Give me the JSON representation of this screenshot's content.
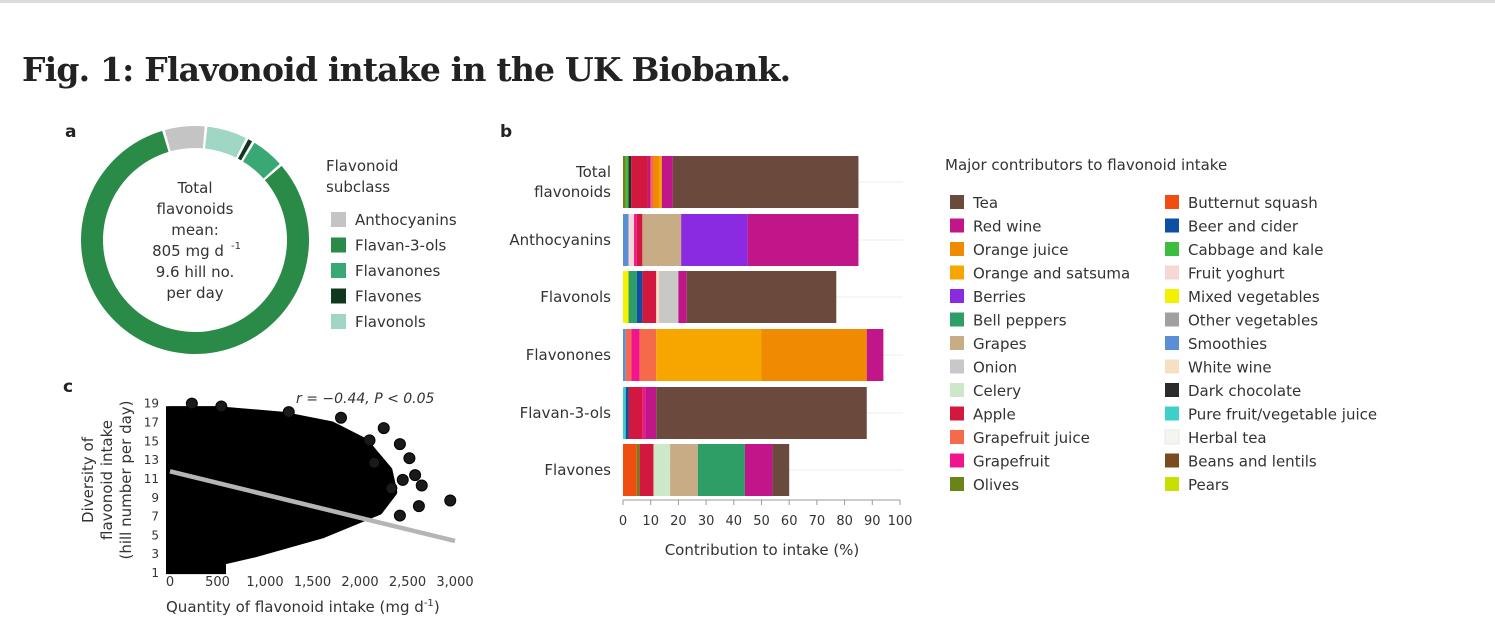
{
  "figure": {
    "title": "Fig. 1: Flavonoid intake in the UK Biobank."
  },
  "chart_data": [
    {
      "panel": "a",
      "type": "pie",
      "style": "donut",
      "center_text": [
        "Total",
        "flavonoids",
        "mean:",
        "805 mg d",
        "9.6 hill no.",
        "per day"
      ],
      "center_unit_superscript": "-1",
      "legend_title": [
        "Flavonoid",
        "subclass"
      ],
      "legend": [
        {
          "label": "Anthocyanins",
          "color": "#c4c4c4"
        },
        {
          "label": "Flavan-3-ols",
          "color": "#2a8a47"
        },
        {
          "label": "Flavanones",
          "color": "#3aa874"
        },
        {
          "label": "Flavones",
          "color": "#10381f"
        },
        {
          "label": "Flavonols",
          "color": "#9fd6c4"
        }
      ],
      "slices": [
        {
          "label": "Anthocyanins",
          "value": 6,
          "color": "#c4c4c4"
        },
        {
          "label": "Flavonols",
          "value": 6,
          "color": "#9fd6c4"
        },
        {
          "label": "Flavones",
          "value": 1,
          "color": "#10381f"
        },
        {
          "label": "Flavanones",
          "value": 5,
          "color": "#3aa874"
        },
        {
          "label": "Flavan-3-ols",
          "value": 82,
          "color": "#2a8a47"
        }
      ]
    },
    {
      "panel": "b",
      "type": "bar",
      "orientation": "horizontal",
      "stacked": true,
      "xlabel": "Contribution to intake (%)",
      "xlim": [
        0,
        100
      ],
      "xticks": [
        0,
        10,
        20,
        30,
        40,
        50,
        60,
        70,
        80,
        90,
        100
      ],
      "categories": [
        [
          "Total",
          "flavonoids"
        ],
        [
          "Anthocyanins"
        ],
        [
          "Flavonols"
        ],
        [
          "Flavonones"
        ],
        [
          "Flavan-3-ols"
        ],
        [
          "Flavones"
        ]
      ],
      "legend_title": "Major contributors to flavonoid intake",
      "legend": [
        {
          "label": "Tea",
          "color": "#6b4a3d"
        },
        {
          "label": "Red wine",
          "color": "#c0168a"
        },
        {
          "label": "Orange juice",
          "color": "#f08a00"
        },
        {
          "label": "Orange and satsuma",
          "color": "#f7a600"
        },
        {
          "label": "Berries",
          "color": "#8a2be2"
        },
        {
          "label": "Bell peppers",
          "color": "#2e9e66"
        },
        {
          "label": "Grapes",
          "color": "#c8ac86"
        },
        {
          "label": "Onion",
          "color": "#c8c8c8"
        },
        {
          "label": "Celery",
          "color": "#cde8c9"
        },
        {
          "label": "Apple",
          "color": "#d2183e"
        },
        {
          "label": "Grapefruit juice",
          "color": "#f56a4a"
        },
        {
          "label": "Grapefruit",
          "color": "#f0158c"
        },
        {
          "label": "Olives",
          "color": "#6b8418"
        },
        {
          "label": "Butternut squash",
          "color": "#f04e10"
        },
        {
          "label": "Beer and cider",
          "color": "#0d4fa3"
        },
        {
          "label": "Cabbage and kale",
          "color": "#3dbd3d"
        },
        {
          "label": "Fruit yoghurt",
          "color": "#f7d6d6"
        },
        {
          "label": "Mixed vegetables",
          "color": "#f2f200"
        },
        {
          "label": "Other vegetables",
          "color": "#a0a0a0"
        },
        {
          "label": "Smoothies",
          "color": "#5a8fd6"
        },
        {
          "label": "White wine",
          "color": "#f5e0c0"
        },
        {
          "label": "Dark chocolate",
          "color": "#2b2b2b"
        },
        {
          "label": "Pure fruit/vegetable juice",
          "color": "#3cd0c8"
        },
        {
          "label": "Herbal tea",
          "color": "#f5f5f0"
        },
        {
          "label": "Beans and lentils",
          "color": "#7a4a20"
        },
        {
          "label": "Pears",
          "color": "#c8e000"
        }
      ],
      "series_values": [
        [
          {
            "source": "Olives",
            "value": 1
          },
          {
            "source": "Cabbage and kale",
            "value": 1
          },
          {
            "source": "Dark chocolate",
            "value": 1
          },
          {
            "source": "Apple",
            "value": 6
          },
          {
            "source": "Red wine",
            "value": 1
          },
          {
            "source": "Grapefruit juice",
            "value": 1
          },
          {
            "source": "Orange juice",
            "value": 2
          },
          {
            "source": "Orange and satsuma",
            "value": 1
          },
          {
            "source": "Red wine",
            "value": 4
          },
          {
            "source": "Tea",
            "value": 67
          }
        ],
        [
          {
            "source": "Smoothies",
            "value": 2
          },
          {
            "source": "Fruit yoghurt",
            "value": 2
          },
          {
            "source": "Grapefruit",
            "value": 1
          },
          {
            "source": "Apple",
            "value": 2
          },
          {
            "source": "Grapes",
            "value": 14
          },
          {
            "source": "Berries",
            "value": 24
          },
          {
            "source": "Red wine",
            "value": 40
          }
        ],
        [
          {
            "source": "Mixed vegetables",
            "value": 2
          },
          {
            "source": "Bell peppers",
            "value": 3
          },
          {
            "source": "Beer and cider",
            "value": 2
          },
          {
            "source": "Apple",
            "value": 5
          },
          {
            "source": "White wine",
            "value": 1
          },
          {
            "source": "Onion",
            "value": 7
          },
          {
            "source": "Red wine",
            "value": 3
          },
          {
            "source": "Tea",
            "value": 54
          }
        ],
        [
          {
            "source": "Smoothies",
            "value": 1
          },
          {
            "source": "Grapefruit juice",
            "value": 2
          },
          {
            "source": "Grapefruit",
            "value": 3
          },
          {
            "source": "Grapefruit juice",
            "value": 6
          },
          {
            "source": "Orange and satsuma",
            "value": 38
          },
          {
            "source": "Orange juice",
            "value": 38
          },
          {
            "source": "Red wine",
            "value": 6
          }
        ],
        [
          {
            "source": "Pure fruit/vegetable juice",
            "value": 1
          },
          {
            "source": "Beer and cider",
            "value": 1
          },
          {
            "source": "Apple",
            "value": 5
          },
          {
            "source": "Grapefruit",
            "value": 1
          },
          {
            "source": "Red wine",
            "value": 4
          },
          {
            "source": "Tea",
            "value": 76
          }
        ],
        [
          {
            "source": "Butternut squash",
            "value": 5
          },
          {
            "source": "Olives",
            "value": 1
          },
          {
            "source": "Apple",
            "value": 5
          },
          {
            "source": "Celery",
            "value": 6
          },
          {
            "source": "Grapes",
            "value": 10
          },
          {
            "source": "Bell peppers",
            "value": 17
          },
          {
            "source": "Red wine",
            "value": 10
          },
          {
            "source": "Tea",
            "value": 6
          }
        ]
      ]
    },
    {
      "panel": "c",
      "type": "scatter",
      "annotation": "r = −0.44, P < 0.05",
      "xlabel": "Quantity of flavonoid intake (mg d",
      "xlabel_superscript": "-1",
      "ylabel": [
        "Diversity of",
        "flavonoid intake",
        "(hill number per day)"
      ],
      "xlim": [
        0,
        3000
      ],
      "ylim": [
        1,
        19.5
      ],
      "xticks": [
        0,
        500,
        1000,
        1500,
        2000,
        2500,
        3000
      ],
      "xtick_labels": [
        "0",
        "500",
        "1,000",
        "1,500",
        "2,000",
        "2,500",
        "3,000"
      ],
      "yticks": [
        1,
        3,
        5,
        7,
        9,
        11,
        13,
        15,
        17,
        19
      ],
      "dense_region": {
        "x_max": 2300,
        "y_low": 1.2,
        "y_high": 18.2
      },
      "outliers": [
        {
          "x": 230,
          "y": 18.9
        },
        {
          "x": 540,
          "y": 18.6
        },
        {
          "x": 1250,
          "y": 18.0
        },
        {
          "x": 1800,
          "y": 17.4
        },
        {
          "x": 2250,
          "y": 16.3
        },
        {
          "x": 2420,
          "y": 14.6
        },
        {
          "x": 2520,
          "y": 13.1
        },
        {
          "x": 2580,
          "y": 11.3
        },
        {
          "x": 2650,
          "y": 10.2
        },
        {
          "x": 2450,
          "y": 10.8
        },
        {
          "x": 2950,
          "y": 8.6
        },
        {
          "x": 2620,
          "y": 8.0
        },
        {
          "x": 2420,
          "y": 7.0
        },
        {
          "x": 2330,
          "y": 9.9
        },
        {
          "x": 2150,
          "y": 12.6
        },
        {
          "x": 2100,
          "y": 15.0
        }
      ],
      "trend_line": {
        "x": [
          0,
          3000
        ],
        "y": [
          11.7,
          4.3
        ],
        "color": "#b5b5b5"
      }
    }
  ]
}
